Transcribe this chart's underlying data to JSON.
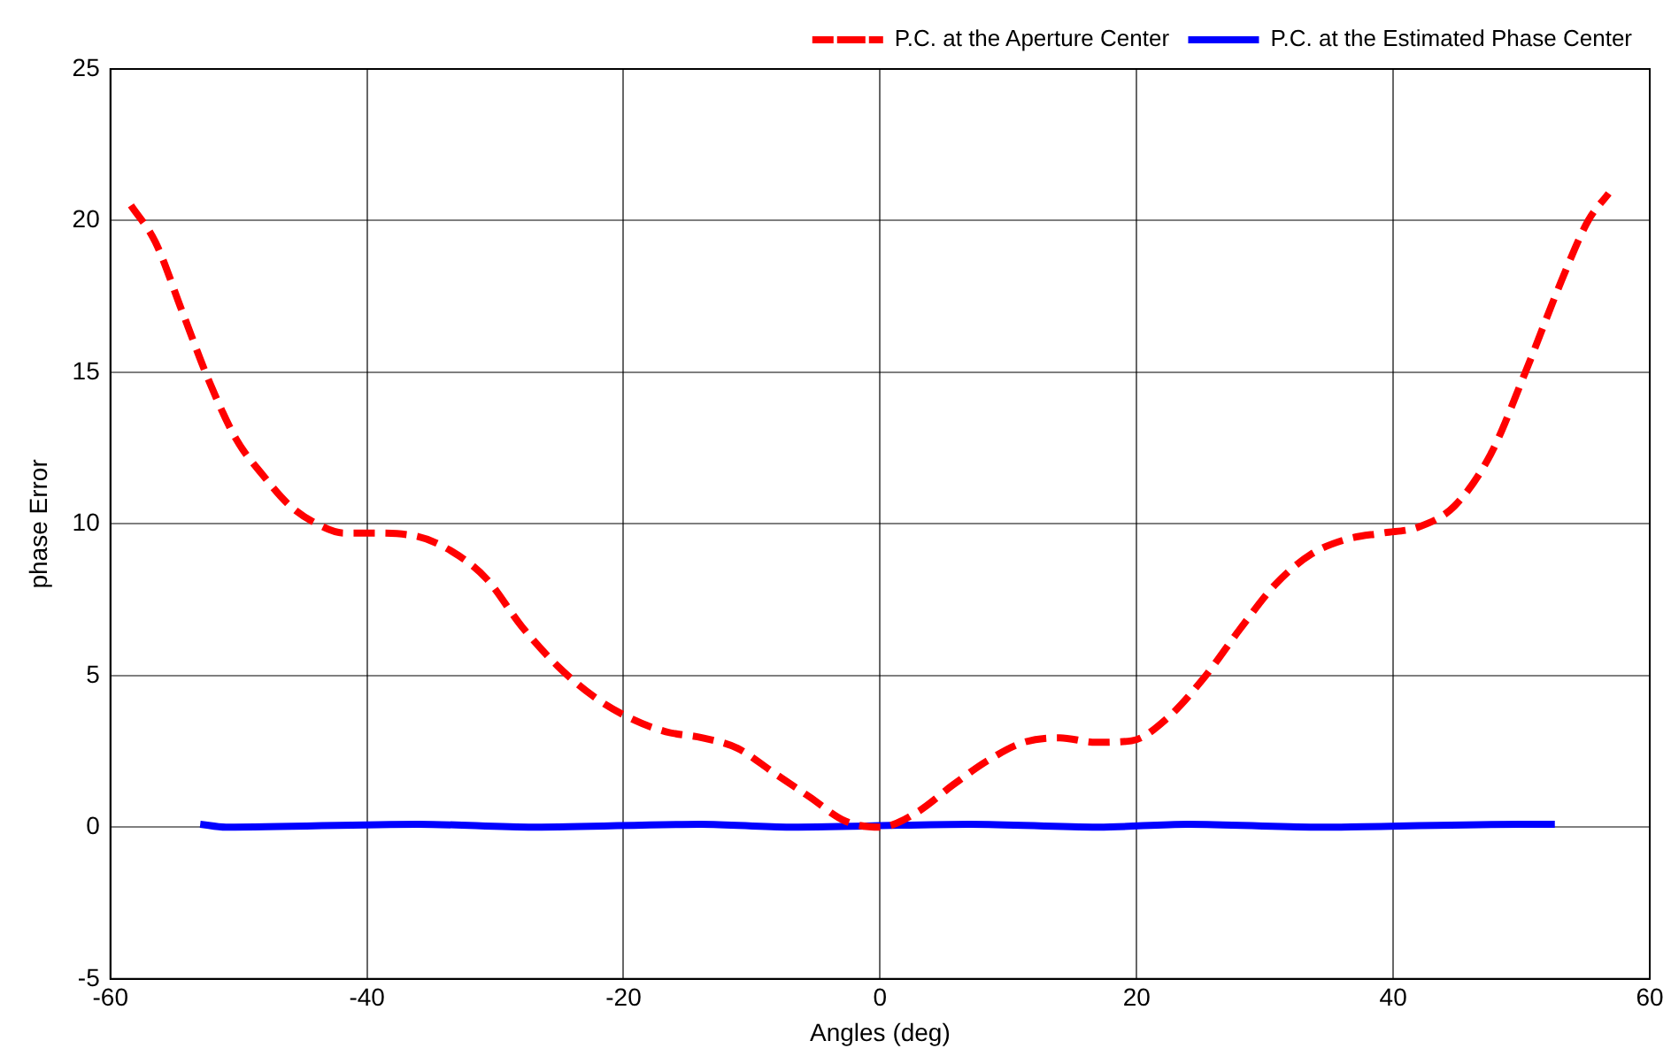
{
  "chart_data": {
    "type": "line",
    "xlabel": "Angles (deg)",
    "ylabel": "phase Error",
    "xlim": [
      -60,
      60
    ],
    "xticks": [
      -60,
      -40,
      -20,
      0,
      20,
      40,
      60
    ],
    "ylim": [
      -5,
      25
    ],
    "yticks": [
      -5,
      0,
      5,
      10,
      15,
      20,
      25
    ],
    "grid": true,
    "legend": "top right",
    "marker": "none",
    "series": [
      {
        "name": "P.C. at the Aperture Center",
        "color": "#ff0000",
        "line_style": "dashed",
        "x": [
          -58.4,
          -56.5,
          -54.4,
          -52.3,
          -50.2,
          -48.1,
          -46,
          -43.9,
          -41.8,
          -39.7,
          -36.2,
          -33.4,
          -30.7,
          -27.9,
          -25.1,
          -22.3,
          -19.5,
          -16.7,
          -13.9,
          -11.1,
          -8.3,
          -5.5,
          -2.7,
          0,
          2.9,
          5.7,
          8.4,
          11.2,
          14,
          16.8,
          19.6,
          22.4,
          25.2,
          28,
          30.8,
          33.6,
          36.4,
          39.2,
          42,
          44.8,
          47.6,
          50.3,
          53.1,
          55.2,
          56.8
        ],
        "values": [
          20.5,
          19.3,
          17,
          14.7,
          12.8,
          11.6,
          10.6,
          10,
          9.7,
          9.7,
          9.6,
          9.1,
          8.2,
          6.6,
          5.3,
          4.3,
          3.6,
          3.15,
          2.95,
          2.6,
          1.8,
          1,
          0.2,
          0,
          0.5,
          1.4,
          2.2,
          2.8,
          2.95,
          2.8,
          2.85,
          3.6,
          4.9,
          6.5,
          8,
          9,
          9.5,
          9.7,
          9.9,
          10.6,
          12.3,
          15,
          18,
          20,
          20.9
        ]
      },
      {
        "name": "P.C. at the Estimated Phase Center",
        "color": "#0000ff",
        "line_style": "solid",
        "x": [
          -53,
          -51,
          -36,
          -27,
          -14,
          -7,
          7,
          17,
          24,
          34,
          50,
          52.6
        ],
        "values": [
          0.1,
          0,
          0.1,
          0,
          0.1,
          0,
          0.1,
          0,
          0.1,
          0,
          0.1,
          0.1
        ]
      }
    ]
  }
}
